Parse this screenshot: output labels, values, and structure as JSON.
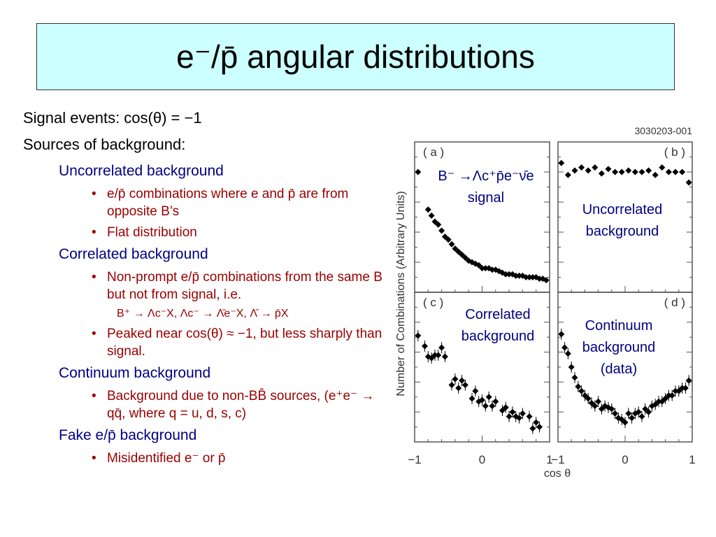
{
  "title": "e⁻/p̄ angular distributions",
  "intro": [
    "Signal events: cos(θ) = −1",
    "Sources of background:"
  ],
  "sections": [
    {
      "heading": "Uncorrelated background",
      "bullets": [
        "e/p̄ combinations where e and p̄ are from opposite B’s",
        "Flat distribution"
      ]
    },
    {
      "heading": "Correlated background",
      "bullets": [
        "Non-prompt e/p̄ combinations from the same B but not from signal, i.e.",
        "Peaked near cos(θ) ≈ −1, but less sharply than signal."
      ],
      "example": "B⁺ → Λc⁻X, Λc⁻ → Λ̄e⁻X, Λ̄ → p̄X"
    },
    {
      "heading": "Continuum background",
      "bullets": [
        "Background due to non-BB̄ sources, (e⁺e⁻ → qq̄, where q = u, d, s, c)"
      ]
    },
    {
      "heading": "Fake e/p̄ background",
      "bullets": [
        "Misidentified e⁻ or p̄"
      ]
    }
  ],
  "figure": {
    "id": "3030203-001",
    "y_label": "Number of Combinations (Arbitrary Units)",
    "x_label": "cos θ",
    "xlim": [
      -1,
      1
    ],
    "ylim": [
      0,
      100
    ],
    "xticks": [
      {
        "value": -1,
        "label": "−1"
      },
      0,
      1
    ],
    "panels": [
      {
        "tag": "( a )",
        "caption": [
          "B⁻ →Λc⁺p̄e⁻ν̄e",
          "signal"
        ],
        "x": [
          -0.95,
          -0.8,
          -0.75,
          -0.7,
          -0.65,
          -0.6,
          -0.55,
          -0.5,
          -0.45,
          -0.4,
          -0.35,
          -0.3,
          -0.25,
          -0.2,
          -0.15,
          -0.1,
          -0.05,
          0,
          0.05,
          0.1,
          0.15,
          0.2,
          0.25,
          0.3,
          0.35,
          0.4,
          0.45,
          0.5,
          0.55,
          0.6,
          0.65,
          0.7,
          0.75,
          0.8,
          0.85,
          0.9,
          0.95
        ],
        "y": [
          80,
          55,
          51,
          47,
          45,
          41,
          37,
          35,
          32,
          29,
          27,
          25,
          23,
          21,
          20,
          19,
          18,
          16,
          16,
          16,
          15,
          15,
          14,
          13,
          12,
          12,
          12,
          11,
          11,
          11,
          10,
          10,
          10,
          10,
          9,
          9,
          8
        ]
      },
      {
        "tag": "( b )",
        "caption": [
          "Uncorrelated",
          "background"
        ],
        "x": [
          -0.95,
          -0.85,
          -0.75,
          -0.65,
          -0.55,
          -0.45,
          -0.35,
          -0.25,
          -0.15,
          -0.05,
          0.05,
          0.15,
          0.25,
          0.35,
          0.45,
          0.55,
          0.65,
          0.75,
          0.85,
          0.95
        ],
        "y": [
          86,
          78,
          81,
          83,
          81,
          83,
          79,
          82,
          80,
          80,
          81,
          80,
          80,
          81,
          78,
          83,
          80,
          80,
          80,
          73
        ]
      },
      {
        "tag": "( c )",
        "caption": [
          "Correlated",
          "background"
        ],
        "x": [
          -0.95,
          -0.85,
          -0.8,
          -0.75,
          -0.7,
          -0.65,
          -0.6,
          -0.55,
          -0.45,
          -0.4,
          -0.35,
          -0.3,
          -0.25,
          -0.15,
          -0.1,
          -0.05,
          0,
          0.05,
          0.1,
          0.15,
          0.2,
          0.3,
          0.35,
          0.4,
          0.45,
          0.5,
          0.55,
          0.6,
          0.7,
          0.75,
          0.8,
          0.85
        ],
        "y": [
          71,
          64,
          57,
          56,
          58,
          58,
          63,
          57,
          38,
          42,
          36,
          41,
          38,
          29,
          34,
          27,
          28,
          24,
          30,
          24,
          27,
          21,
          23,
          17,
          20,
          17,
          16,
          19,
          17,
          9,
          13,
          10
        ]
      },
      {
        "tag": "( d )",
        "caption": [
          "Continuum",
          "background",
          "(data)"
        ],
        "x": [
          -0.95,
          -0.9,
          -0.85,
          -0.8,
          -0.75,
          -0.7,
          -0.65,
          -0.6,
          -0.55,
          -0.5,
          -0.45,
          -0.4,
          -0.35,
          -0.3,
          -0.25,
          -0.2,
          -0.15,
          -0.1,
          -0.05,
          0,
          0.05,
          0.1,
          0.15,
          0.2,
          0.25,
          0.3,
          0.35,
          0.4,
          0.45,
          0.5,
          0.55,
          0.6,
          0.65,
          0.7,
          0.75,
          0.8,
          0.85,
          0.9,
          0.95
        ],
        "y": [
          72,
          63,
          59,
          50,
          43,
          37,
          34,
          31,
          29,
          26,
          24,
          27,
          22,
          24,
          23,
          22,
          19,
          16,
          15,
          13,
          19,
          16,
          19,
          20,
          17,
          22,
          20,
          24,
          25,
          27,
          27,
          29,
          31,
          31,
          34,
          34,
          36,
          36,
          41
        ]
      }
    ]
  }
}
